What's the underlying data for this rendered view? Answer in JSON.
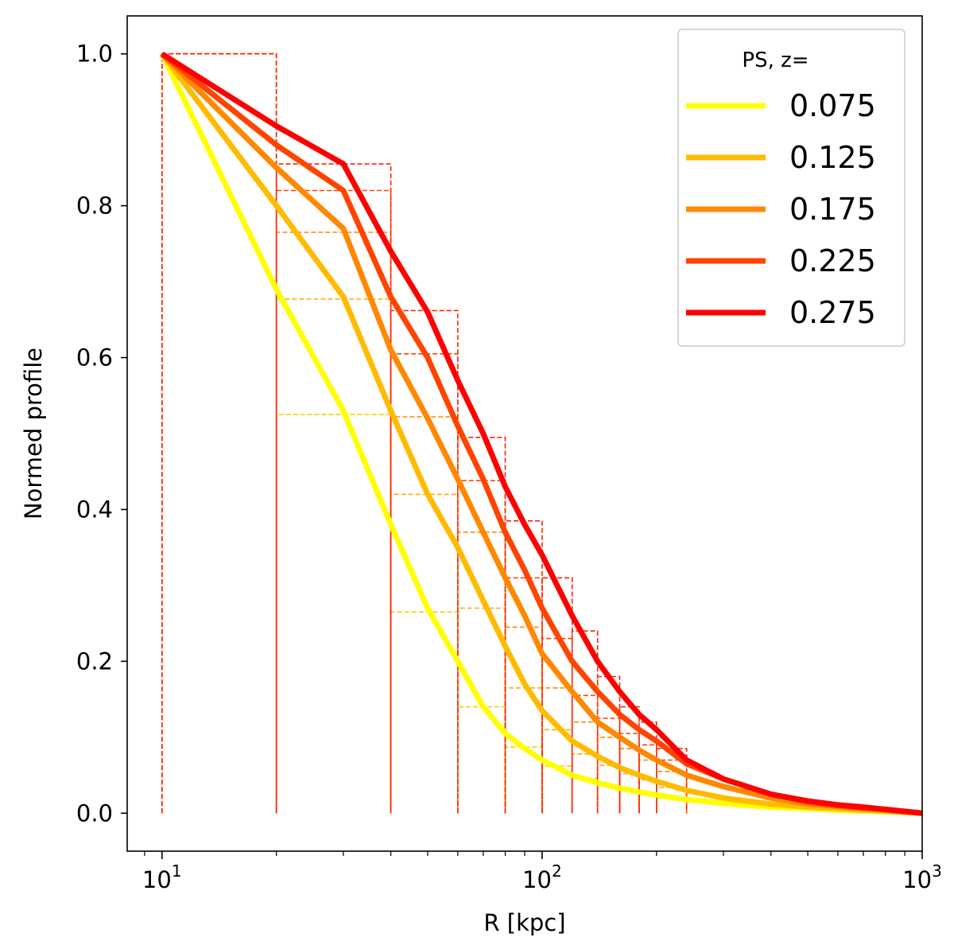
{
  "chart_data": {
    "type": "line",
    "xlabel": "R [kpc]",
    "ylabel": "Normed profile",
    "xscale": "log",
    "xlim": [
      8.1,
      1000
    ],
    "ylim": [
      -0.05,
      1.05
    ],
    "xticks": [
      {
        "value": 10,
        "base": "10",
        "exp": "1"
      },
      {
        "value": 100,
        "base": "10",
        "exp": "2"
      },
      {
        "value": 1000,
        "base": "10",
        "exp": "3"
      }
    ],
    "yticks": [
      {
        "value": 0.0,
        "label": "0.0"
      },
      {
        "value": 0.2,
        "label": "0.2"
      },
      {
        "value": 0.4,
        "label": "0.4"
      },
      {
        "value": 0.6,
        "label": "0.6"
      },
      {
        "value": 0.8,
        "label": "0.8"
      },
      {
        "value": 1.0,
        "label": "1.0"
      }
    ],
    "legend": {
      "title": "PS, z=",
      "position": "upper right"
    },
    "x": [
      10,
      20,
      30,
      40,
      50,
      60,
      70,
      80,
      90,
      100,
      120,
      140,
      160,
      180,
      200,
      240,
      300,
      400,
      500,
      600,
      700,
      800,
      1000
    ],
    "series": [
      {
        "name": "0.075",
        "color": "#ffff00",
        "values": [
          1.0,
          0.69,
          0.53,
          0.38,
          0.27,
          0.2,
          0.14,
          0.105,
          0.085,
          0.07,
          0.05,
          0.04,
          0.033,
          0.028,
          0.024,
          0.018,
          0.013,
          0.008,
          0.006,
          0.004,
          0.003,
          0.002,
          0.0
        ]
      },
      {
        "name": "0.125",
        "color": "#ffbb00",
        "values": [
          1.0,
          0.8,
          0.68,
          0.53,
          0.42,
          0.35,
          0.28,
          0.22,
          0.17,
          0.135,
          0.095,
          0.075,
          0.06,
          0.05,
          0.042,
          0.03,
          0.02,
          0.012,
          0.008,
          0.006,
          0.004,
          0.003,
          0.0
        ]
      },
      {
        "name": "0.175",
        "color": "#ff8800",
        "values": [
          1.0,
          0.85,
          0.77,
          0.61,
          0.52,
          0.44,
          0.37,
          0.31,
          0.26,
          0.21,
          0.16,
          0.12,
          0.1,
          0.083,
          0.07,
          0.05,
          0.035,
          0.02,
          0.012,
          0.009,
          0.006,
          0.004,
          0.0
        ]
      },
      {
        "name": "0.225",
        "color": "#ff4400",
        "values": [
          1.0,
          0.88,
          0.82,
          0.68,
          0.6,
          0.51,
          0.44,
          0.37,
          0.32,
          0.27,
          0.2,
          0.16,
          0.13,
          0.11,
          0.095,
          0.065,
          0.045,
          0.025,
          0.015,
          0.01,
          0.007,
          0.005,
          0.0
        ]
      },
      {
        "name": "0.275",
        "color": "#ff0000",
        "values": [
          1.0,
          0.905,
          0.855,
          0.74,
          0.66,
          0.57,
          0.5,
          0.43,
          0.38,
          0.34,
          0.26,
          0.2,
          0.16,
          0.13,
          0.11,
          0.07,
          0.045,
          0.025,
          0.016,
          0.011,
          0.008,
          0.005,
          0.0
        ]
      }
    ],
    "binned_steps": {
      "style": "dashed",
      "edges": [
        10,
        20,
        40,
        60,
        80,
        100,
        120,
        140,
        160,
        180,
        200,
        240
      ],
      "series": [
        {
          "name": "0.075",
          "color": "#ffcc00",
          "values": [
            1.0,
            0.525,
            0.265,
            0.14,
            0.087,
            0.062,
            0.046,
            0.036,
            0.03,
            0.026,
            0.02
          ]
        },
        {
          "name": "0.125",
          "color": "#ffaa00",
          "values": [
            1.0,
            0.677,
            0.42,
            0.27,
            0.165,
            0.11,
            0.078,
            0.063,
            0.052,
            0.044,
            0.034
          ]
        },
        {
          "name": "0.175",
          "color": "#ff8800",
          "values": [
            1.0,
            0.765,
            0.522,
            0.37,
            0.245,
            0.165,
            0.12,
            0.1,
            0.085,
            0.07,
            0.055
          ]
        },
        {
          "name": "0.225",
          "color": "#ff4400",
          "values": [
            1.0,
            0.82,
            0.605,
            0.438,
            0.31,
            0.23,
            0.155,
            0.125,
            0.105,
            0.09,
            0.07
          ]
        },
        {
          "name": "0.275",
          "color": "#ff2200",
          "values": [
            1.0,
            0.855,
            0.662,
            0.495,
            0.385,
            0.31,
            0.24,
            0.18,
            0.14,
            0.12,
            0.085
          ]
        }
      ]
    }
  }
}
